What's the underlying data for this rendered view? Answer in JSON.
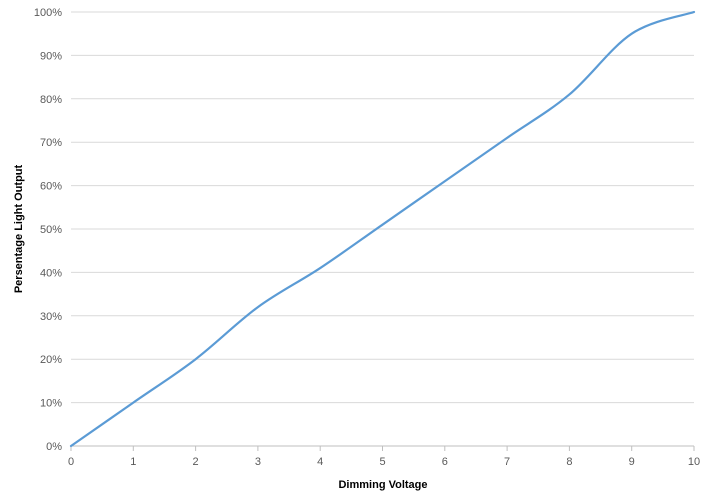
{
  "chart_data": {
    "type": "line",
    "title": "",
    "xlabel": "Dimming Voltage",
    "ylabel": "Persentage Light Output",
    "xlim": [
      0,
      10
    ],
    "ylim": [
      0,
      100
    ],
    "x_ticks": [
      "0",
      "1",
      "2",
      "3",
      "4",
      "5",
      "6",
      "7",
      "8",
      "9",
      "10"
    ],
    "y_ticks": [
      "0%",
      "10%",
      "20%",
      "30%",
      "40%",
      "50%",
      "60%",
      "70%",
      "80%",
      "90%",
      "100%"
    ],
    "grid": "horizontal",
    "legend": "none",
    "series": [
      {
        "x": [
          0,
          1,
          2,
          3,
          4,
          5,
          6,
          7,
          8,
          9,
          10
        ],
        "values": [
          0,
          10,
          20,
          32,
          41,
          51,
          61,
          71,
          81,
          95,
          100
        ]
      }
    ],
    "colors": {
      "line": "#5B9BD5",
      "grid": "#D9D9D9",
      "axis": "#BFBFBF"
    }
  }
}
